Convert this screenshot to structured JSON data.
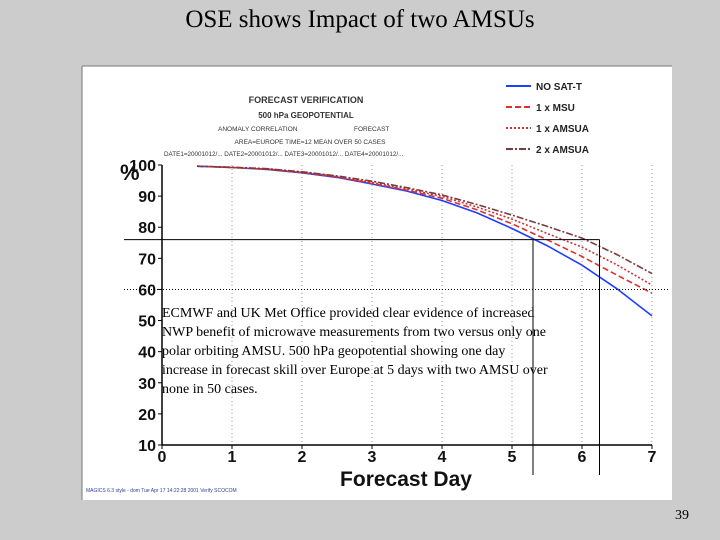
{
  "slide": {
    "title": "OSE shows Impact of two AMSUs",
    "page_number": "39",
    "caption_lines": [
      "ECMWF and UK Met Office provided clear evidence of increased",
      "NWP benefit of microwave measurements from two versus only one",
      "polar orbiting AMSU.  500 hPa geopotential showing one day",
      "increase in forecast skill over Europe at 5 days with two AMSU over",
      "none in 50 cases."
    ]
  },
  "chart_data": {
    "type": "line",
    "header_lines": [
      "FORECAST VERIFICATION",
      "500 hPa GEOPOTENTIAL",
      "ANOMALY CORRELATION",
      "FORECAST",
      "AREA=EUROPE   TIME=12   MEAN OVER 50 CASES",
      "DATE1=20001012/...  DATE2=20001012/...  DATE3=20001012/...  DATE4=20001012/..."
    ],
    "xlabel": "Forecast Day",
    "ylabel": "%",
    "xlim": [
      0,
      7
    ],
    "ylim": [
      10,
      100
    ],
    "xticks": [
      0,
      1,
      2,
      3,
      4,
      5,
      6,
      7
    ],
    "yticks": [
      100,
      90,
      80,
      70,
      60,
      50,
      40,
      30,
      20,
      10
    ],
    "footer": "MAGICS 6.3 style - dom Tue Apr 17 14:22:28 2001 Verify SCOCOM",
    "x": [
      0.5,
      1,
      1.5,
      2,
      2.5,
      3,
      3.5,
      4,
      4.5,
      5,
      5.5,
      6,
      6.5,
      7
    ],
    "series": [
      {
        "name": "NO SAT-T",
        "color": "#1f3fff",
        "dash": "",
        "values": [
          99.6,
          99.2,
          98.6,
          97.5,
          96.0,
          93.9,
          91.6,
          88.6,
          84.6,
          79.6,
          74.1,
          67.8,
          60.2,
          51.5
        ]
      },
      {
        "name": "1 x MSU",
        "color": "#e03030",
        "dash": "6,3",
        "values": [
          99.6,
          99.2,
          98.6,
          97.6,
          96.1,
          94.1,
          91.9,
          89.3,
          85.6,
          81.1,
          76.0,
          70.6,
          64.6,
          58.8
        ]
      },
      {
        "name": "1 x AMSUA",
        "color": "#cc3333",
        "dash": "2,2",
        "values": [
          99.6,
          99.2,
          98.7,
          97.7,
          96.3,
          94.4,
          92.3,
          89.9,
          86.5,
          82.6,
          78.0,
          73.6,
          67.9,
          61.4
        ]
      },
      {
        "name": "2 x AMSUA",
        "color": "#7a3b3b",
        "dash": "7,2,2,2",
        "values": [
          99.6,
          99.3,
          98.8,
          97.8,
          96.5,
          94.8,
          92.7,
          90.4,
          87.3,
          83.9,
          80.3,
          76.5,
          71.2,
          65.1
        ]
      }
    ],
    "annotations": {
      "ref_y": [
        76,
        60
      ],
      "ref_x": [
        5.3,
        6.25
      ]
    }
  }
}
